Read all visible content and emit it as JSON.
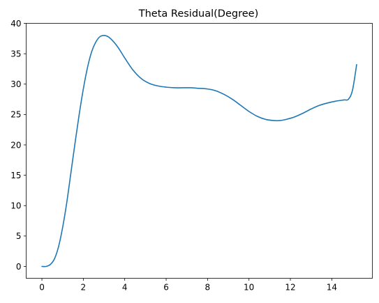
{
  "chart_data": {
    "type": "line",
    "title": "Theta Residual(Degree)",
    "xlabel": "",
    "ylabel": "",
    "xlim": [
      -0.76,
      15.96
    ],
    "ylim": [
      -1.95,
      40
    ],
    "xticks": [
      0,
      2,
      4,
      6,
      8,
      10,
      12,
      14
    ],
    "yticks": [
      0,
      5,
      10,
      15,
      20,
      25,
      30,
      35,
      40
    ],
    "grid": false,
    "line_color": "#1f77b4",
    "series": [
      {
        "x": [
          0,
          0.2,
          0.4,
          0.6,
          0.8,
          1.0,
          1.2,
          1.4,
          1.6,
          1.8,
          2.0,
          2.2,
          2.4,
          2.6,
          2.8,
          3.0,
          3.2,
          3.4,
          3.6,
          3.8,
          4.0,
          4.4,
          4.8,
          5.2,
          5.6,
          6.0,
          6.4,
          6.8,
          7.2,
          7.6,
          8.0,
          8.4,
          8.8,
          9.2,
          9.6,
          10.0,
          10.4,
          10.8,
          11.2,
          11.5,
          11.8,
          12.2,
          12.6,
          13.0,
          13.4,
          13.8,
          14.2,
          14.6,
          14.8,
          15.0,
          15.2
        ],
        "y": [
          0,
          0,
          0.3,
          1.2,
          3.2,
          6.4,
          10.5,
          15.4,
          20.3,
          25.0,
          29.2,
          32.7,
          35.3,
          36.9,
          37.8,
          38.0,
          37.8,
          37.2,
          36.4,
          35.4,
          34.3,
          32.3,
          30.9,
          30.1,
          29.7,
          29.5,
          29.4,
          29.4,
          29.4,
          29.3,
          29.2,
          28.9,
          28.3,
          27.5,
          26.5,
          25.5,
          24.7,
          24.2,
          24.0,
          24.0,
          24.2,
          24.6,
          25.2,
          25.9,
          26.5,
          26.9,
          27.2,
          27.4,
          27.5,
          29.0,
          33.2
        ]
      }
    ]
  }
}
